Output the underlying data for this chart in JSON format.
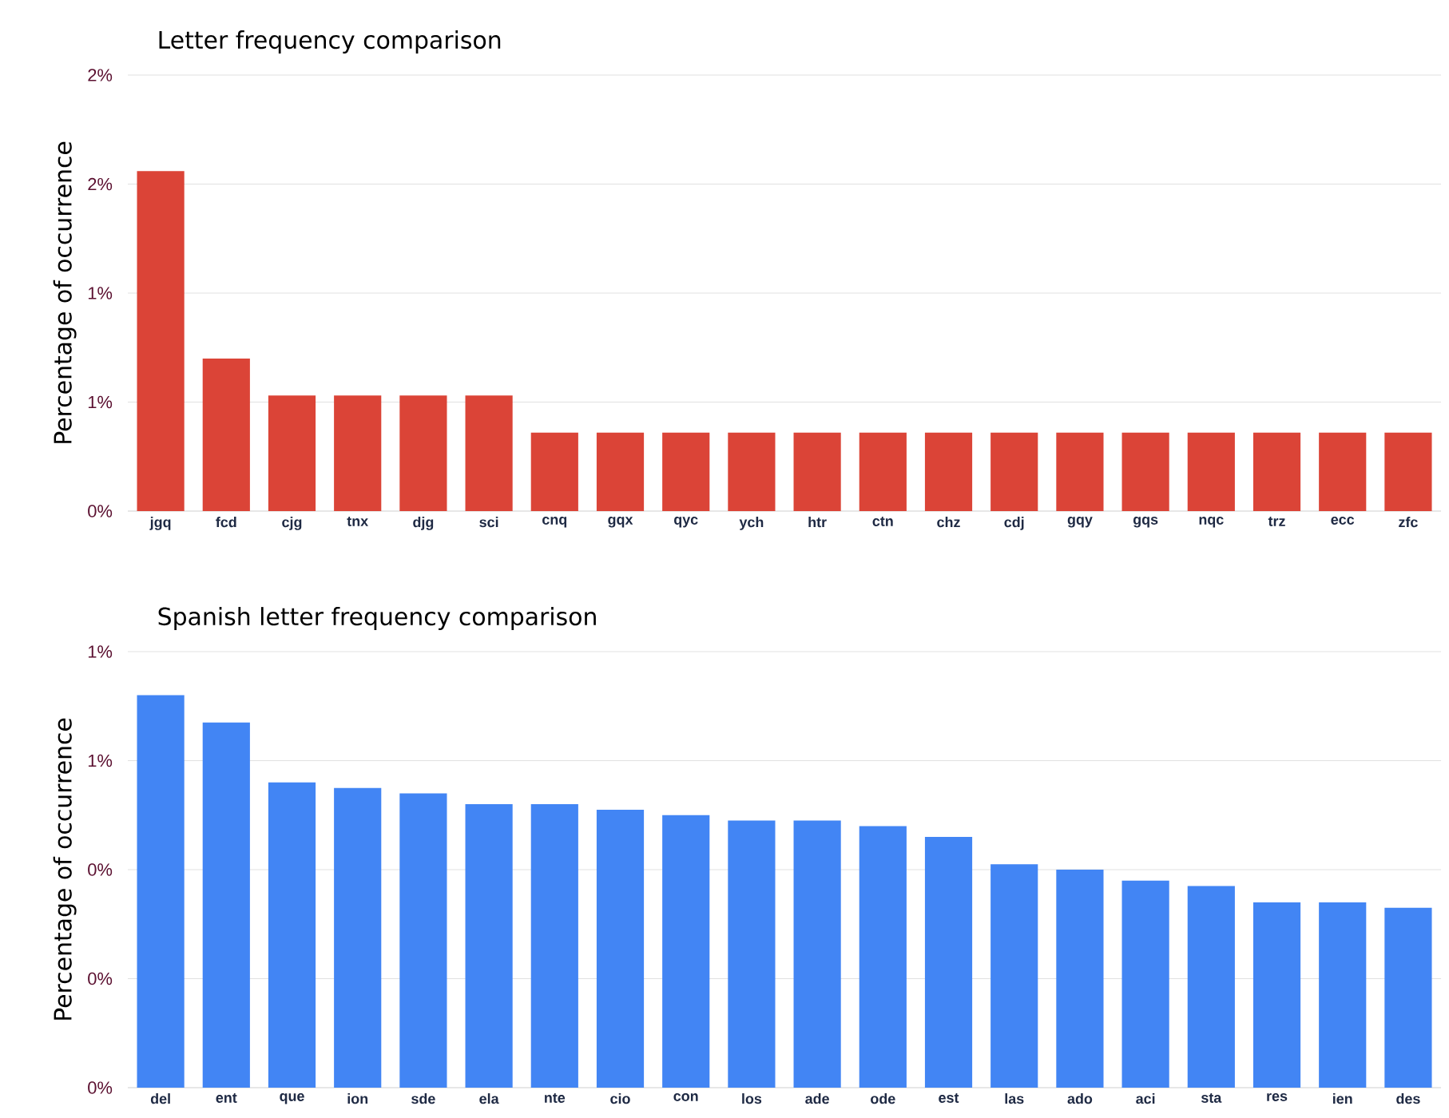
{
  "chart_data": [
    {
      "type": "bar",
      "title": "Letter frequency comparison",
      "ylabel": "Percentage of occurrence",
      "categories": [
        "jgq",
        "fcd",
        "cjg",
        "tnx",
        "djg",
        "sci",
        "cnq",
        "gqx",
        "qyc",
        "ych",
        "htr",
        "ctn",
        "chz",
        "cdj",
        "gqy",
        "gqs",
        "nqc",
        "trz",
        "ecc",
        "zfc"
      ],
      "values": [
        1.56,
        0.7,
        0.53,
        0.53,
        0.53,
        0.53,
        0.36,
        0.36,
        0.36,
        0.36,
        0.36,
        0.36,
        0.36,
        0.36,
        0.36,
        0.36,
        0.36,
        0.36,
        0.36,
        0.36
      ],
      "color": "#db4437",
      "ylim": [
        0,
        2
      ],
      "yticks": [
        {
          "value": 0,
          "label": "0%"
        },
        {
          "value": 0.5,
          "label": "1%"
        },
        {
          "value": 1,
          "label": "1%"
        },
        {
          "value": 1.5,
          "label": "2%"
        },
        {
          "value": 2,
          "label": "2%"
        }
      ],
      "grid": "y"
    },
    {
      "type": "bar",
      "title": "Spanish letter frequency comparison",
      "ylabel": "Percentage of occurrence",
      "categories": [
        "del",
        "ent",
        "que",
        "ion",
        "sde",
        "ela",
        "nte",
        "cio",
        "con",
        "los",
        "ade",
        "ode",
        "est",
        "las",
        "ado",
        "aci",
        "sta",
        "res",
        "ien",
        "des"
      ],
      "values": [
        0.72,
        0.67,
        0.56,
        0.55,
        0.54,
        0.52,
        0.52,
        0.51,
        0.5,
        0.49,
        0.49,
        0.48,
        0.46,
        0.41,
        0.4,
        0.38,
        0.37,
        0.34,
        0.34,
        0.33
      ],
      "color": "#4285f4",
      "ylim": [
        0,
        0.8
      ],
      "yticks": [
        {
          "value": 0,
          "label": "0%"
        },
        {
          "value": 0.2,
          "label": "0%"
        },
        {
          "value": 0.4,
          "label": "0%"
        },
        {
          "value": 0.6,
          "label": "1%"
        },
        {
          "value": 0.8,
          "label": "1%"
        }
      ],
      "grid": "y"
    }
  ]
}
